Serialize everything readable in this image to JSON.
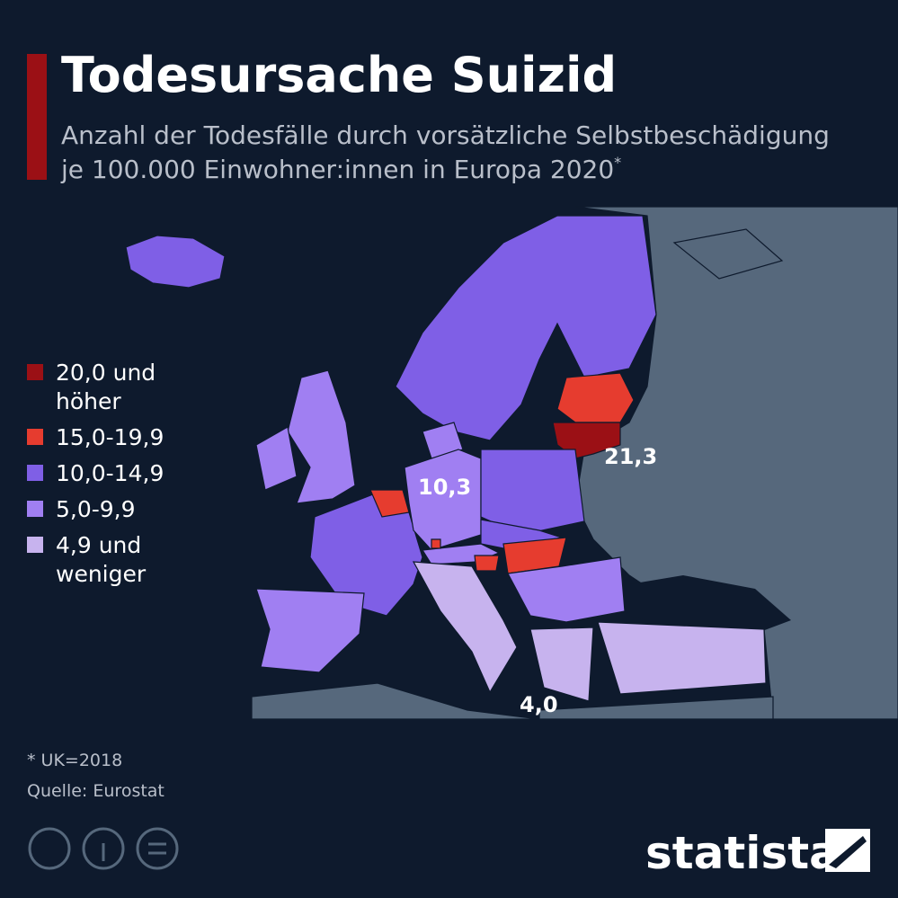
{
  "header": {
    "title": "Todesursache Suizid",
    "subtitle_line1": "Anzahl der Todesfälle durch vorsätzliche Selbstbeschädigung",
    "subtitle_line2": "je 100.000 Einwohner:innen in Europa 2020",
    "subtitle_mark": "*"
  },
  "legend": {
    "items": [
      {
        "lines": [
          "20,0 und",
          "höher"
        ],
        "color": "#9b1015"
      },
      {
        "lines": [
          "15,0-19,9"
        ],
        "color": "#e63c2f"
      },
      {
        "lines": [
          "10,0-14,9"
        ],
        "color": "#7f5fe6"
      },
      {
        "lines": [
          "5,0-9,9"
        ],
        "color": "#a07ff2"
      },
      {
        "lines": [
          "4,9 und",
          "weniger"
        ],
        "color": "#c7b3ee"
      }
    ]
  },
  "annotations": [
    "10,3",
    "21,3",
    "4,0"
  ],
  "footer": {
    "note": "* UK=2018",
    "source": "Quelle: Eurostat",
    "brand": "statista"
  }
}
